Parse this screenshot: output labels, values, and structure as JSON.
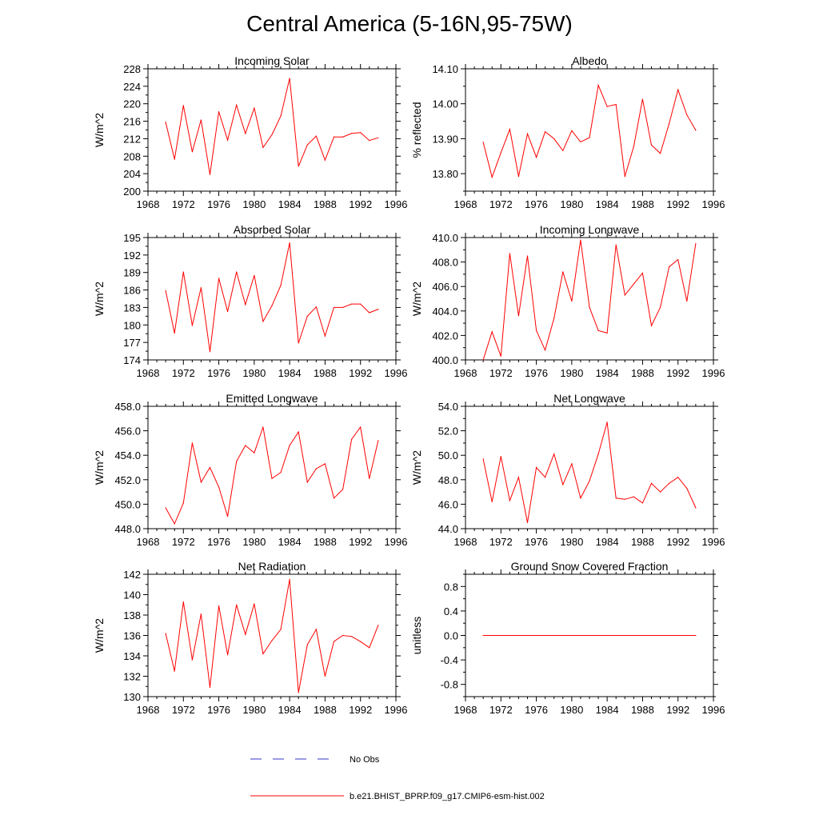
{
  "page": {
    "title": "Central America (5-16N,95-75W)"
  },
  "colors": {
    "series": "#ff0000",
    "obs": "#3333cc",
    "axis": "#000000"
  },
  "legend": {
    "obs_label": "No Obs",
    "model_label": "b.e21.BHIST_BPRP.f09_g17.CMIP6-esm-hist.002"
  },
  "chart_data": [
    {
      "type": "line",
      "title": "Incoming Solar",
      "xlabel": "",
      "ylabel": "W/m^2",
      "xlim": [
        1968,
        1996
      ],
      "ylim": [
        200,
        228
      ],
      "xticks": [
        1968,
        1972,
        1976,
        1980,
        1984,
        1988,
        1992,
        1996
      ],
      "xtick_labels": [
        "1968",
        "1972",
        "1976",
        "1980",
        "1984",
        "1988",
        "1992",
        "1996"
      ],
      "yticks": [
        200,
        204,
        208,
        212,
        216,
        220,
        224,
        228
      ],
      "ytick_labels": [
        "200",
        "204",
        "208",
        "212",
        "216",
        "220",
        "224",
        "228"
      ],
      "series": [
        {
          "name": "b.e21.BHIST_BPRP.f09_g17.CMIP6-esm-hist.002",
          "x": [
            1970,
            1971,
            1972,
            1973,
            1974,
            1975,
            1976,
            1977,
            1978,
            1979,
            1980,
            1981,
            1982,
            1983,
            1984,
            1985,
            1986,
            1987,
            1988,
            1989,
            1990,
            1991,
            1992,
            1993,
            1994
          ],
          "y": [
            215.8,
            207.3,
            219.6,
            209.0,
            216.3,
            203.8,
            218.2,
            211.7,
            219.7,
            213.2,
            219.0,
            210.0,
            212.9,
            217.2,
            225.8,
            205.7,
            210.6,
            212.6,
            207.1,
            212.4,
            212.4,
            213.2,
            213.4,
            211.6,
            212.2
          ]
        }
      ]
    },
    {
      "type": "line",
      "title": "Albedo",
      "xlabel": "",
      "ylabel": "% reflected",
      "xlim": [
        1968,
        1996
      ],
      "ylim": [
        13.75,
        14.1
      ],
      "xticks": [
        1968,
        1972,
        1976,
        1980,
        1984,
        1988,
        1992,
        1996
      ],
      "xtick_labels": [
        "1968",
        "1972",
        "1976",
        "1980",
        "1984",
        "1988",
        "1992",
        "1996"
      ],
      "yticks": [
        13.8,
        13.9,
        14.0,
        14.1
      ],
      "ytick_labels": [
        "13.80",
        "13.90",
        "14.00",
        "14.10"
      ],
      "series": [
        {
          "name": "b.e21.BHIST_BPRP.f09_g17.CMIP6-esm-hist.002",
          "x": [
            1970,
            1971,
            1972,
            1973,
            1974,
            1975,
            1976,
            1977,
            1978,
            1979,
            1980,
            1981,
            1982,
            1983,
            1984,
            1985,
            1986,
            1987,
            1988,
            1989,
            1990,
            1991,
            1992,
            1993,
            1994
          ],
          "y": [
            13.89,
            13.79,
            13.86,
            13.927,
            13.792,
            13.914,
            13.847,
            13.92,
            13.9,
            13.866,
            13.923,
            13.891,
            13.903,
            14.053,
            13.992,
            13.998,
            13.792,
            13.878,
            14.013,
            13.882,
            13.858,
            13.943,
            14.04,
            13.968,
            13.924
          ]
        }
      ]
    },
    {
      "type": "line",
      "title": "Absorbed Solar",
      "xlabel": "",
      "ylabel": "W/m^2",
      "xlim": [
        1968,
        1996
      ],
      "ylim": [
        174,
        195
      ],
      "xticks": [
        1968,
        1972,
        1976,
        1980,
        1984,
        1988,
        1992,
        1996
      ],
      "xtick_labels": [
        "1968",
        "1972",
        "1976",
        "1980",
        "1984",
        "1988",
        "1992",
        "1996"
      ],
      "yticks": [
        174,
        177,
        180,
        183,
        186,
        189,
        192,
        195
      ],
      "ytick_labels": [
        "174",
        "177",
        "180",
        "183",
        "186",
        "189",
        "192",
        "195"
      ],
      "series": [
        {
          "name": "b.e21.BHIST_BPRP.f09_g17.CMIP6-esm-hist.002",
          "x": [
            1970,
            1971,
            1972,
            1973,
            1974,
            1975,
            1976,
            1977,
            1978,
            1979,
            1980,
            1981,
            1982,
            1983,
            1984,
            1985,
            1986,
            1987,
            1988,
            1989,
            1990,
            1991,
            1992,
            1993,
            1994
          ],
          "y": [
            185.9,
            178.6,
            189.1,
            179.9,
            186.4,
            175.4,
            188.0,
            182.3,
            189.1,
            183.5,
            188.5,
            180.6,
            183.3,
            186.8,
            194.1,
            176.9,
            181.5,
            183.1,
            178.1,
            183.0,
            183.0,
            183.6,
            183.6,
            182.1,
            182.7
          ]
        }
      ]
    },
    {
      "type": "line",
      "title": "Incoming Longwave",
      "xlabel": "",
      "ylabel": "W/m^2",
      "xlim": [
        1968,
        1996
      ],
      "ylim": [
        400.0,
        410.0
      ],
      "xticks": [
        1968,
        1972,
        1976,
        1980,
        1984,
        1988,
        1992,
        1996
      ],
      "xtick_labels": [
        "1968",
        "1972",
        "1976",
        "1980",
        "1984",
        "1988",
        "1992",
        "1996"
      ],
      "yticks": [
        400.0,
        402.0,
        404.0,
        406.0,
        408.0,
        410.0
      ],
      "ytick_labels": [
        "400.0",
        "402.0",
        "404.0",
        "406.0",
        "408.0",
        "410.0"
      ],
      "series": [
        {
          "name": "b.e21.BHIST_BPRP.f09_g17.CMIP6-esm-hist.002",
          "x": [
            1970,
            1971,
            1972,
            1973,
            1974,
            1975,
            1976,
            1977,
            1978,
            1979,
            1980,
            1981,
            1982,
            1983,
            1984,
            1985,
            1986,
            1987,
            1988,
            1989,
            1990,
            1991,
            1992,
            1993,
            1994
          ],
          "y": [
            400.0,
            402.3,
            400.3,
            408.7,
            403.6,
            408.5,
            402.4,
            400.8,
            403.4,
            407.2,
            404.8,
            409.8,
            404.3,
            402.4,
            402.2,
            409.4,
            405.3,
            406.2,
            407.1,
            402.8,
            404.3,
            407.6,
            408.2,
            404.8,
            409.5
          ]
        }
      ]
    },
    {
      "type": "line",
      "title": "Emitted Longwave",
      "xlabel": "",
      "ylabel": "W/m^2",
      "xlim": [
        1968,
        1996
      ],
      "ylim": [
        448.0,
        458.0
      ],
      "xticks": [
        1968,
        1972,
        1976,
        1980,
        1984,
        1988,
        1992,
        1996
      ],
      "xtick_labels": [
        "1968",
        "1972",
        "1976",
        "1980",
        "1984",
        "1988",
        "1992",
        "1996"
      ],
      "yticks": [
        448.0,
        450.0,
        452.0,
        454.0,
        456.0,
        458.0
      ],
      "ytick_labels": [
        "448.0",
        "450.0",
        "452.0",
        "454.0",
        "456.0",
        "458.0"
      ],
      "series": [
        {
          "name": "b.e21.BHIST_BPRP.f09_g17.CMIP6-esm-hist.002",
          "x": [
            1970,
            1971,
            1972,
            1973,
            1974,
            1975,
            1976,
            1977,
            1978,
            1979,
            1980,
            1981,
            1982,
            1983,
            1984,
            1985,
            1986,
            1987,
            1988,
            1989,
            1990,
            1991,
            1992,
            1993,
            1994
          ],
          "y": [
            449.7,
            448.4,
            450.1,
            455.0,
            451.8,
            453.0,
            451.4,
            449.0,
            453.5,
            454.8,
            454.2,
            456.3,
            452.1,
            452.6,
            454.8,
            455.9,
            451.8,
            452.9,
            453.3,
            450.5,
            451.2,
            455.3,
            456.3,
            452.1,
            455.2
          ]
        }
      ]
    },
    {
      "type": "line",
      "title": "Net Longwave",
      "xlabel": "",
      "ylabel": "W/m^2",
      "xlim": [
        1968,
        1996
      ],
      "ylim": [
        44.0,
        54.0
      ],
      "xticks": [
        1968,
        1972,
        1976,
        1980,
        1984,
        1988,
        1992,
        1996
      ],
      "xtick_labels": [
        "1968",
        "1972",
        "1976",
        "1980",
        "1984",
        "1988",
        "1992",
        "1996"
      ],
      "yticks": [
        44.0,
        46.0,
        48.0,
        50.0,
        52.0,
        54.0
      ],
      "ytick_labels": [
        "44.0",
        "46.0",
        "48.0",
        "50.0",
        "52.0",
        "54.0"
      ],
      "series": [
        {
          "name": "b.e21.BHIST_BPRP.f09_g17.CMIP6-esm-hist.002",
          "x": [
            1970,
            1971,
            1972,
            1973,
            1974,
            1975,
            1976,
            1977,
            1978,
            1979,
            1980,
            1981,
            1982,
            1983,
            1984,
            1985,
            1986,
            1987,
            1988,
            1989,
            1990,
            1991,
            1992,
            1993,
            1994
          ],
          "y": [
            49.7,
            46.2,
            49.9,
            46.3,
            48.2,
            44.5,
            49.0,
            48.2,
            50.1,
            47.6,
            49.3,
            46.5,
            47.9,
            50.1,
            52.7,
            46.5,
            46.4,
            46.6,
            46.1,
            47.7,
            47.0,
            47.7,
            48.2,
            47.3,
            45.7
          ]
        }
      ]
    },
    {
      "type": "line",
      "title": "Net Radiation",
      "xlabel": "",
      "ylabel": "W/m^2",
      "xlim": [
        1968,
        1996
      ],
      "ylim": [
        130,
        142
      ],
      "xticks": [
        1968,
        1972,
        1976,
        1980,
        1984,
        1988,
        1992,
        1996
      ],
      "xtick_labels": [
        "1968",
        "1972",
        "1976",
        "1980",
        "1984",
        "1988",
        "1992",
        "1996"
      ],
      "yticks": [
        130,
        132,
        134,
        136,
        138,
        140,
        142
      ],
      "ytick_labels": [
        "130",
        "132",
        "134",
        "136",
        "138",
        "140",
        "142"
      ],
      "series": [
        {
          "name": "b.e21.BHIST_BPRP.f09_g17.CMIP6-esm-hist.002",
          "x": [
            1970,
            1971,
            1972,
            1973,
            1974,
            1975,
            1976,
            1977,
            1978,
            1979,
            1980,
            1981,
            1982,
            1983,
            1984,
            1985,
            1986,
            1987,
            1988,
            1989,
            1990,
            1991,
            1992,
            1993,
            1994
          ],
          "y": [
            136.2,
            132.5,
            139.3,
            133.6,
            138.1,
            130.9,
            138.9,
            134.1,
            139.0,
            136.1,
            139.1,
            134.2,
            135.5,
            136.6,
            141.5,
            130.4,
            135.1,
            136.6,
            132.0,
            135.4,
            136.0,
            135.9,
            135.4,
            134.8,
            137.0
          ]
        }
      ]
    },
    {
      "type": "line",
      "title": "Ground Snow Covered Fraction",
      "xlabel": "",
      "ylabel": "unitless",
      "xlim": [
        1968,
        1996
      ],
      "ylim": [
        -1.0,
        1.0
      ],
      "xticks": [
        1968,
        1972,
        1976,
        1980,
        1984,
        1988,
        1992,
        1996
      ],
      "xtick_labels": [
        "1968",
        "1972",
        "1976",
        "1980",
        "1984",
        "1988",
        "1992",
        "1996"
      ],
      "yticks": [
        -0.8,
        -0.4,
        0.0,
        0.4,
        0.8
      ],
      "ytick_labels": [
        "-0.8",
        "-0.4",
        "0.0",
        "0.4",
        "0.8"
      ],
      "series": [
        {
          "name": "b.e21.BHIST_BPRP.f09_g17.CMIP6-esm-hist.002",
          "x": [
            1970,
            1971,
            1972,
            1973,
            1974,
            1975,
            1976,
            1977,
            1978,
            1979,
            1980,
            1981,
            1982,
            1983,
            1984,
            1985,
            1986,
            1987,
            1988,
            1989,
            1990,
            1991,
            1992,
            1993,
            1994
          ],
          "y": [
            0,
            0,
            0,
            0,
            0,
            0,
            0,
            0,
            0,
            0,
            0,
            0,
            0,
            0,
            0,
            0,
            0,
            0,
            0,
            0,
            0,
            0,
            0,
            0,
            0
          ]
        }
      ]
    }
  ]
}
